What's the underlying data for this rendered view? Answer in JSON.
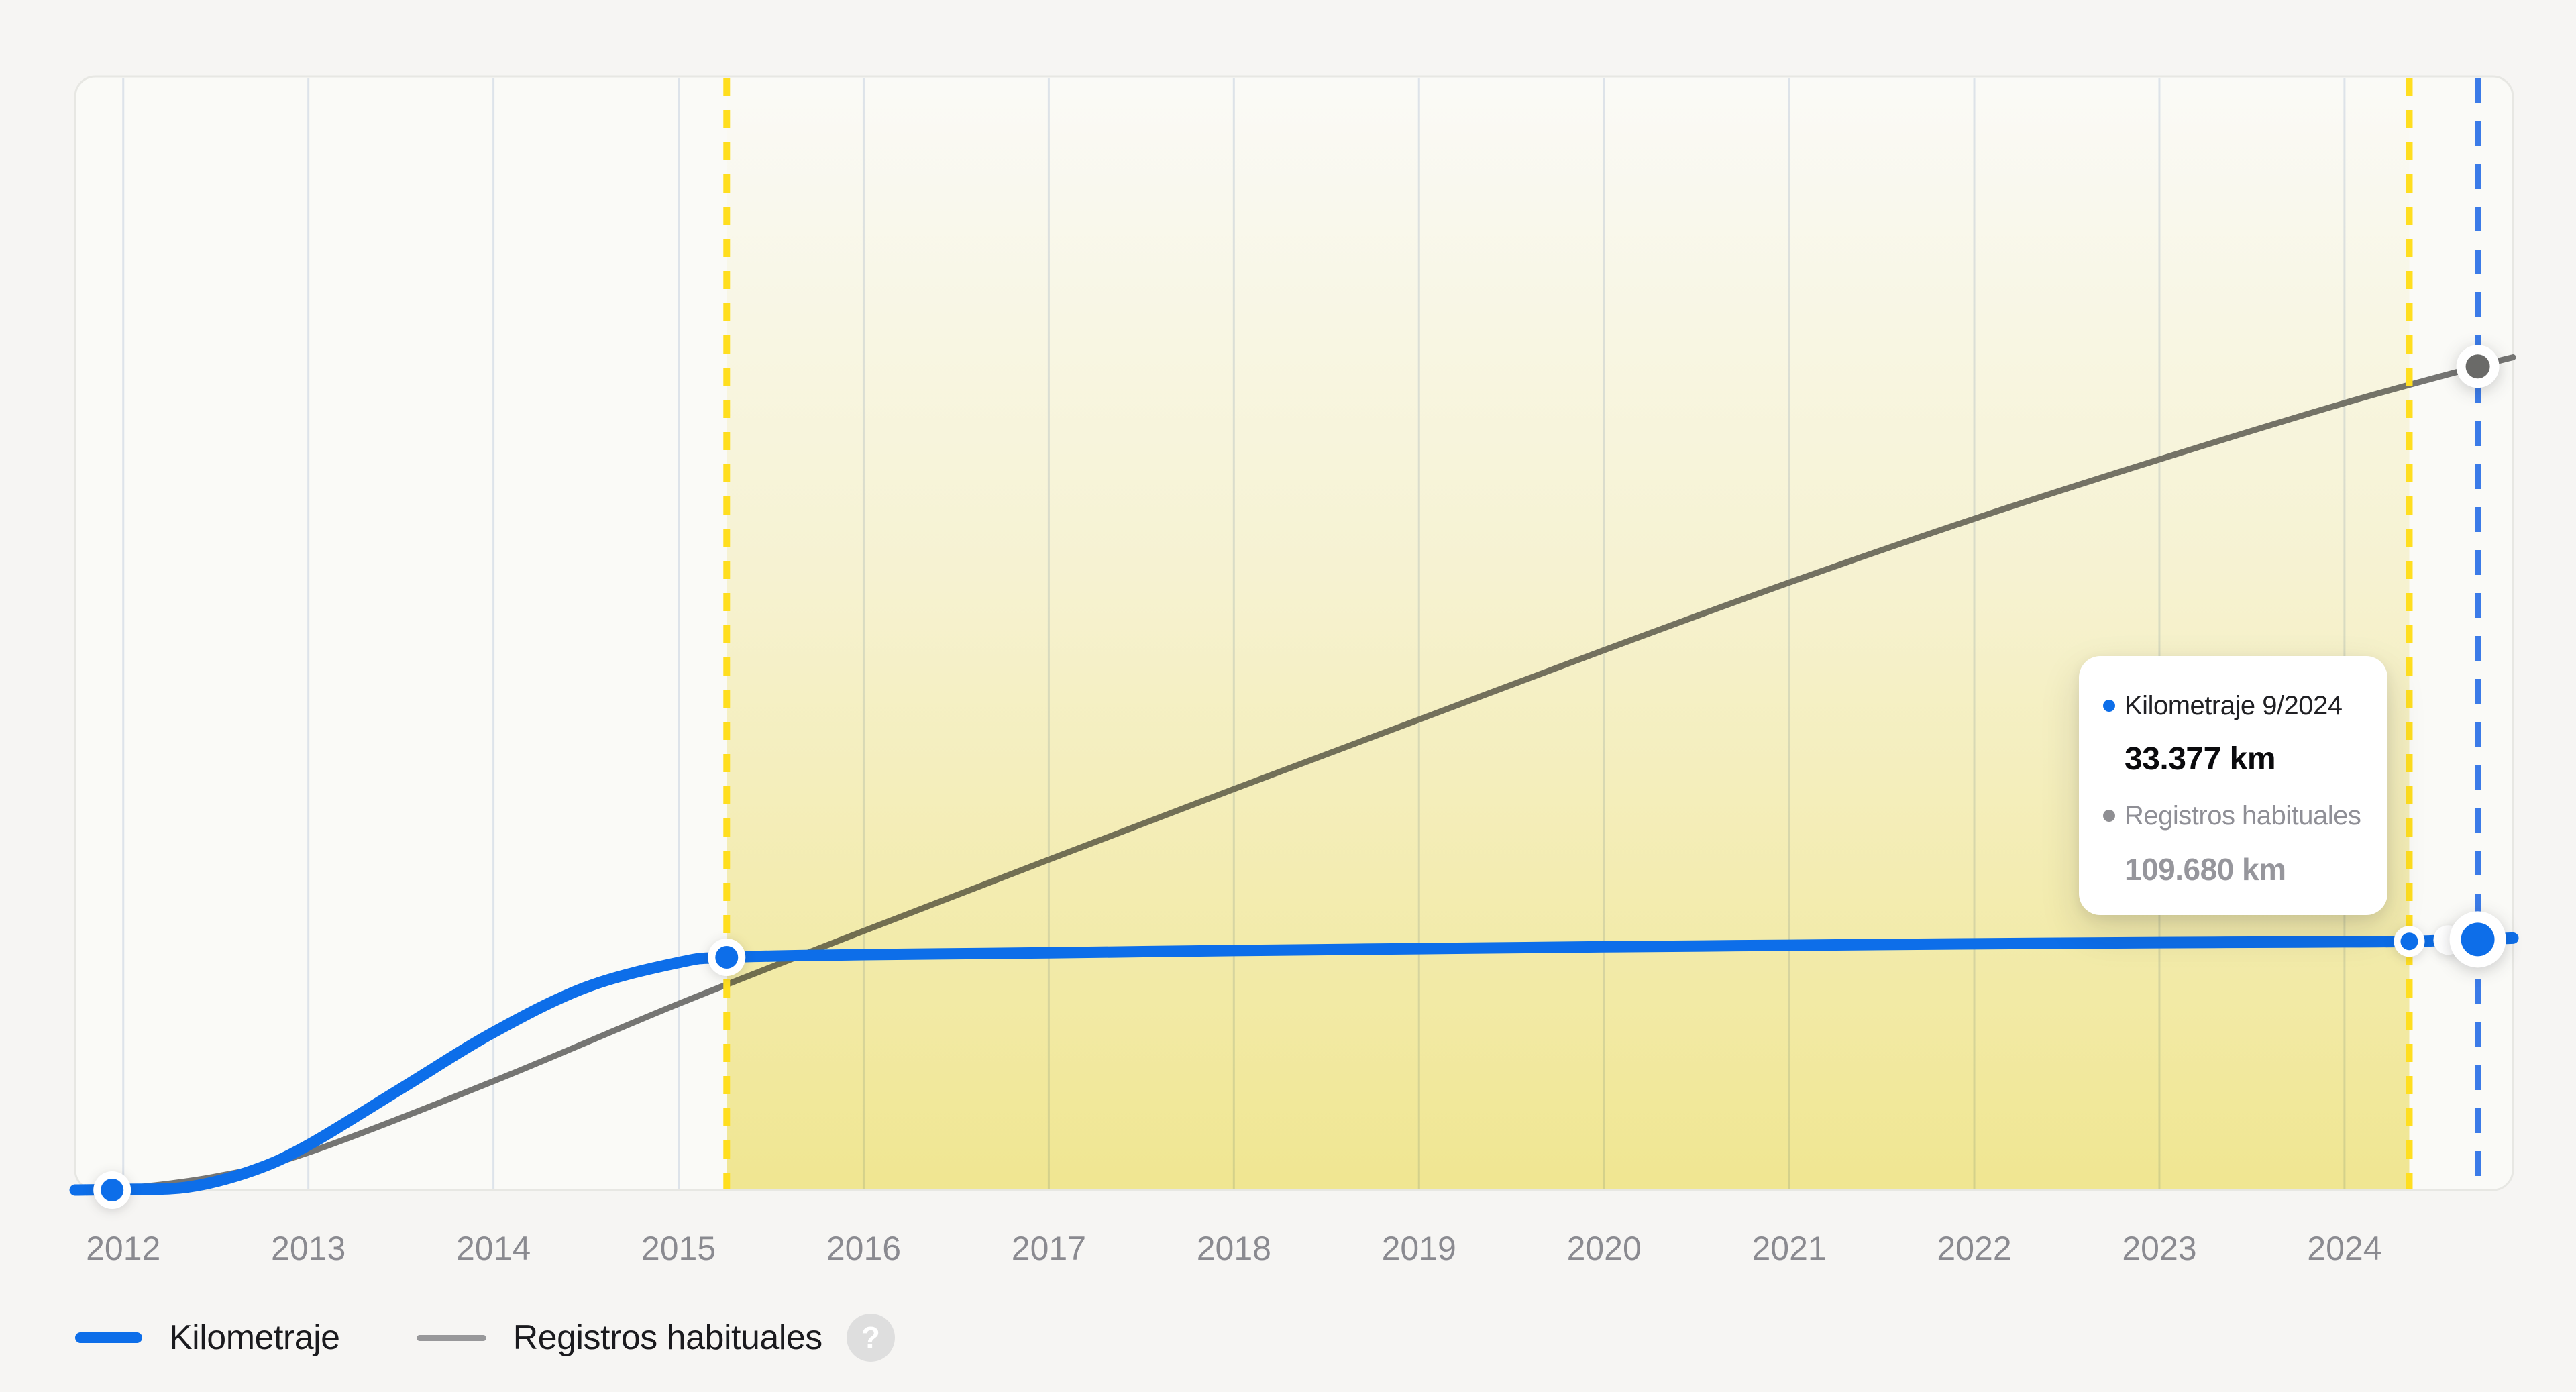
{
  "colors": {
    "page_background": "#f6f5f3",
    "panel_background": "#fafaf7",
    "panel_border": "#e7e7e3",
    "gridline": "rgba(156,176,205,0.30)",
    "kilometraje_blue": "#0d6ee9",
    "registros_gray": "#757573",
    "region_yellow_bottom": "#f5eb96",
    "region_border_yellow": "#ffde1f",
    "cursor_blue": "#3b7be8",
    "axis_tick": "#8a8a90"
  },
  "tooltip": {
    "title": "Kilometraje 9/2024",
    "value": "33.377 km",
    "secondary_label": "Registros habituales",
    "secondary_value": "109.680 km"
  },
  "legend": {
    "items": [
      {
        "label": "Kilometraje",
        "color": "#0d6ee9"
      },
      {
        "label": "Registros habituales",
        "color": "#98989a"
      }
    ],
    "help_icon": "?"
  },
  "chart_data": {
    "type": "line",
    "title": "",
    "xlabel": "",
    "ylabel": "",
    "grid": "vertical-only",
    "legend_position": "bottom-left",
    "x_ticks": [
      2012,
      2013,
      2014,
      2015,
      2016,
      2017,
      2018,
      2019,
      2020,
      2021,
      2022,
      2023,
      2024
    ],
    "xlim": [
      2011.74,
      2024.91
    ],
    "ylim": [
      0,
      148200
    ],
    "y_unit": "km",
    "series": [
      {
        "name": "Kilometraje",
        "color": "#0d6ee9",
        "points": [
          [
            2011.74,
            0
          ],
          [
            2012.0,
            100
          ],
          [
            2012.35,
            400
          ],
          [
            2012.7,
            2600
          ],
          [
            2013.0,
            6000
          ],
          [
            2013.5,
            13500
          ],
          [
            2014.0,
            21000
          ],
          [
            2014.5,
            27000
          ],
          [
            2015.0,
            30300
          ],
          [
            2015.26,
            31000
          ],
          [
            2016.0,
            31350
          ],
          [
            2017.0,
            31600
          ],
          [
            2018.0,
            31900
          ],
          [
            2019.0,
            32150
          ],
          [
            2020.0,
            32400
          ],
          [
            2021.0,
            32600
          ],
          [
            2022.0,
            32800
          ],
          [
            2023.0,
            32950
          ],
          [
            2024.0,
            33060
          ],
          [
            2024.35,
            33115
          ],
          [
            2024.72,
            33377
          ],
          [
            2024.91,
            33550
          ]
        ]
      },
      {
        "name": "Registros habituales",
        "color": "#757573",
        "points": [
          [
            2011.74,
            0
          ],
          [
            2012.0,
            200
          ],
          [
            2012.5,
            1800
          ],
          [
            2013.0,
            5000
          ],
          [
            2014.0,
            14500
          ],
          [
            2015.0,
            24800
          ],
          [
            2016.0,
            34500
          ],
          [
            2017.0,
            44000
          ],
          [
            2018.0,
            53400
          ],
          [
            2019.0,
            62650
          ],
          [
            2020.0,
            71900
          ],
          [
            2021.0,
            80900
          ],
          [
            2022.0,
            89400
          ],
          [
            2023.0,
            97300
          ],
          [
            2024.0,
            104800
          ],
          [
            2024.72,
            109680
          ],
          [
            2024.91,
            110900
          ]
        ]
      }
    ],
    "highlight_region": {
      "from": 2015.26,
      "to": 2024.35
    },
    "cursor": {
      "x": 2024.72,
      "label": "9/2024",
      "kilometraje_km": 33377,
      "registros_km": 109680
    },
    "markers": [
      {
        "series": 0,
        "x": 2011.94,
        "km": 0,
        "size": "normal"
      },
      {
        "series": 0,
        "x": 2015.26,
        "km": 31000,
        "size": "normal"
      },
      {
        "series": 0,
        "x": 2024.35,
        "km": 33115,
        "size": "small"
      },
      {
        "series": 0,
        "x": 2024.56,
        "km": 33290,
        "size": "ghost"
      },
      {
        "series": 1,
        "x": 2024.72,
        "km": 109680,
        "size": "gray"
      },
      {
        "series": 0,
        "x": 2024.72,
        "km": 33377,
        "size": "large"
      }
    ]
  }
}
